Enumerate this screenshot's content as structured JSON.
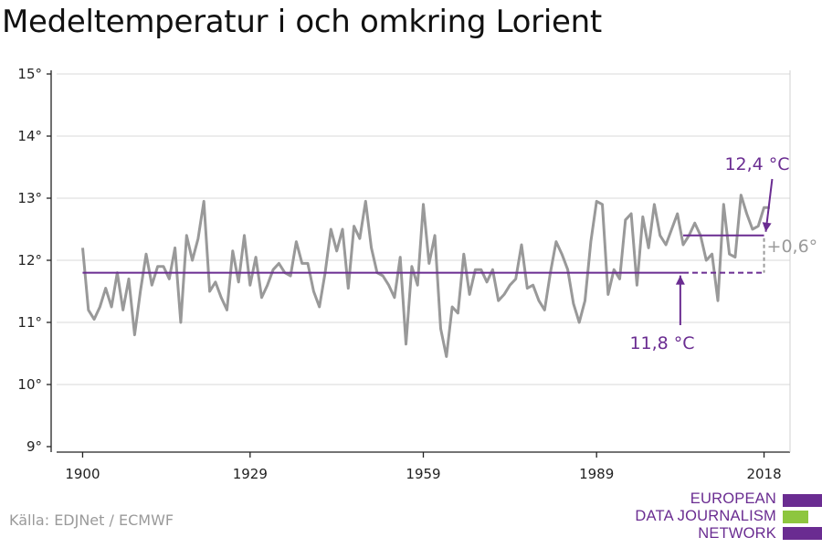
{
  "title": "Medeltemperatur i och omkring Lorient",
  "source": "Källa: EDJNet / ECMWF",
  "logo": {
    "line1": "EUROPEAN",
    "line2": "DATA JOURNALISM",
    "line3": "NETWORK",
    "colors": [
      "#6a2c91",
      "#8dc63f",
      "#6a2c91"
    ]
  },
  "colors": {
    "series": "#999999",
    "baseline": "#6a2c91",
    "recent": "#6a2c91",
    "annotation": "#6a2c91",
    "diff": "#9a9a9a",
    "grid": "#d9d9d9"
  },
  "chart_data": {
    "type": "line",
    "title": "Medeltemperatur i och omkring Lorient",
    "xlabel": "",
    "ylabel": "",
    "xlim": [
      1900,
      2018
    ],
    "ylim": [
      9,
      15
    ],
    "x_ticks": [
      1900,
      1929,
      1959,
      1989,
      2018
    ],
    "y_ticks": [
      9,
      10,
      11,
      12,
      13,
      14,
      15
    ],
    "y_tick_labels": [
      "9°",
      "10°",
      "11°",
      "12°",
      "13°",
      "14°",
      "15°"
    ],
    "grid": "horizontal",
    "x": [
      1900,
      1901,
      1902,
      1903,
      1904,
      1905,
      1906,
      1907,
      1908,
      1909,
      1910,
      1911,
      1912,
      1913,
      1914,
      1915,
      1916,
      1917,
      1918,
      1919,
      1920,
      1921,
      1922,
      1923,
      1924,
      1925,
      1926,
      1927,
      1928,
      1929,
      1930,
      1931,
      1932,
      1933,
      1934,
      1935,
      1936,
      1937,
      1938,
      1939,
      1940,
      1941,
      1942,
      1943,
      1944,
      1945,
      1946,
      1947,
      1948,
      1949,
      1950,
      1951,
      1952,
      1953,
      1954,
      1955,
      1956,
      1957,
      1958,
      1959,
      1960,
      1961,
      1962,
      1963,
      1964,
      1965,
      1966,
      1967,
      1968,
      1969,
      1970,
      1971,
      1972,
      1973,
      1974,
      1975,
      1976,
      1977,
      1978,
      1979,
      1980,
      1981,
      1982,
      1983,
      1984,
      1985,
      1986,
      1987,
      1988,
      1989,
      1990,
      1991,
      1992,
      1993,
      1994,
      1995,
      1996,
      1997,
      1998,
      1999,
      2000,
      2001,
      2002,
      2003,
      2004,
      2005,
      2006,
      2007,
      2008,
      2009,
      2010,
      2011,
      2012,
      2013,
      2014,
      2015,
      2016,
      2017,
      2018,
      2019
    ],
    "series": [
      {
        "values": [
          12.2,
          11.2,
          11.05,
          11.25,
          11.55,
          11.25,
          11.8,
          11.2,
          11.7,
          10.8,
          11.5,
          12.1,
          11.6,
          11.9,
          11.9,
          11.7,
          12.2,
          11.0,
          12.4,
          12.0,
          12.35,
          12.95,
          11.5,
          11.65,
          11.4,
          11.2,
          12.15,
          11.65,
          12.4,
          11.6,
          12.05,
          11.4,
          11.6,
          11.85,
          11.95,
          11.8,
          11.75,
          12.3,
          11.95,
          11.95,
          11.5,
          11.25,
          11.8,
          12.5,
          12.15,
          12.5,
          11.55,
          12.55,
          12.35,
          12.95,
          12.2,
          11.8,
          11.75,
          11.6,
          11.4,
          12.05,
          10.65,
          11.9,
          11.6,
          12.9,
          11.95,
          12.4,
          10.9,
          10.45,
          11.25,
          11.15,
          12.1,
          11.45,
          11.85,
          11.85,
          11.65,
          11.85,
          11.35,
          11.45,
          11.6,
          11.7,
          12.25,
          11.55,
          11.6,
          11.35,
          11.2,
          11.8,
          12.3,
          12.1,
          11.85,
          11.3,
          11.0,
          11.35,
          12.3,
          12.95,
          12.9,
          11.45,
          11.85,
          11.7,
          12.65,
          12.75,
          11.6,
          12.7,
          12.2,
          12.9,
          12.4,
          12.25,
          12.5,
          12.75,
          12.25,
          12.4,
          12.6,
          12.4,
          12.0,
          12.1,
          11.35,
          12.9,
          12.1,
          12.05,
          13.05,
          12.75,
          12.5,
          12.55,
          12.85,
          12.85
        ]
      }
    ],
    "baseline": {
      "value": 11.8,
      "x_start": 1900,
      "x_solid_end": 2004,
      "x_dash_end": 2018
    },
    "recent": {
      "value": 12.4,
      "x_start": 2004,
      "x_end": 2018
    },
    "annotations": {
      "recent_label": "12,4 °C",
      "baseline_label": "11,8 °C",
      "difference_label": "+0,6°"
    }
  }
}
